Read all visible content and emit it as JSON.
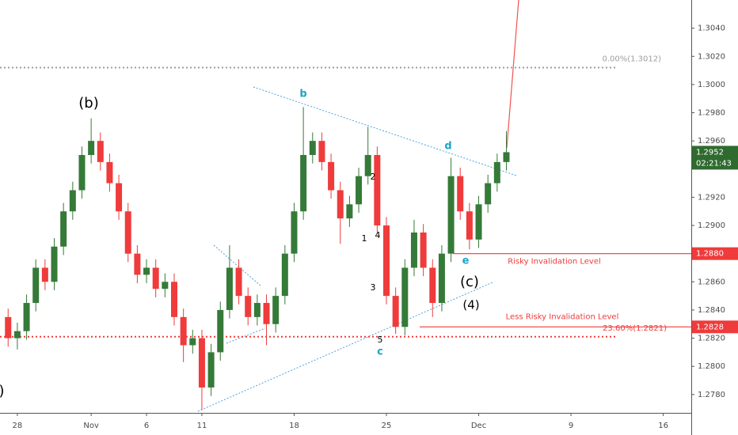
{
  "chart_data": {
    "type": "candlestick",
    "x": [
      -0.5,
      0,
      0.5,
      1,
      1.5,
      2,
      2.5,
      3,
      3.5,
      4,
      4.5,
      5,
      5.5,
      6,
      6.5,
      7,
      7.5,
      8,
      8.5,
      9,
      9.5,
      10,
      10.5,
      11,
      11.5,
      12,
      12.5,
      13,
      13.5,
      14,
      14.5,
      15,
      15.5,
      16,
      16.5,
      17,
      17.5,
      18,
      18.5,
      19,
      19.5,
      20,
      20.5,
      21,
      21.5,
      22,
      22.5,
      23,
      23.5,
      24,
      24.5,
      25,
      25.5,
      26,
      26.5
    ],
    "open": [
      1.2835,
      1.282,
      1.2825,
      1.2845,
      1.287,
      1.286,
      1.2885,
      1.291,
      1.2925,
      1.295,
      1.296,
      1.2945,
      1.293,
      1.291,
      1.288,
      1.2865,
      1.287,
      1.2855,
      1.286,
      1.2835,
      1.2815,
      1.282,
      1.2785,
      1.281,
      1.284,
      1.287,
      1.285,
      1.2835,
      1.2845,
      1.283,
      1.285,
      1.288,
      1.291,
      1.295,
      1.296,
      1.2945,
      1.2925,
      1.2905,
      1.2915,
      1.2935,
      1.295,
      1.29,
      1.285,
      1.2828,
      1.287,
      1.2895,
      1.287,
      1.2845,
      1.288,
      1.2935,
      1.291,
      1.289,
      1.2915,
      1.293,
      1.2945
    ],
    "high": [
      1.2841,
      1.2831,
      1.2851,
      1.2876,
      1.2876,
      1.2891,
      1.2916,
      1.2931,
      1.2956,
      1.2976,
      1.2966,
      1.2951,
      1.2936,
      1.2916,
      1.2886,
      1.2876,
      1.2876,
      1.2866,
      1.2866,
      1.2841,
      1.2826,
      1.2826,
      1.2816,
      1.2846,
      1.2886,
      1.2876,
      1.2856,
      1.2851,
      1.2851,
      1.2856,
      1.2886,
      1.2916,
      1.2984,
      1.2966,
      1.2966,
      1.2951,
      1.2931,
      1.2921,
      1.2941,
      1.297,
      1.2956,
      1.2906,
      1.2856,
      1.2876,
      1.2904,
      1.2901,
      1.2876,
      1.2886,
      1.2948,
      1.2941,
      1.2916,
      1.2921,
      1.2936,
      1.2951,
      1.2967
    ],
    "low": [
      1.2814,
      1.2812,
      1.2819,
      1.2839,
      1.2854,
      1.2854,
      1.2879,
      1.2904,
      1.2919,
      1.2944,
      1.2939,
      1.2924,
      1.2904,
      1.2874,
      1.2859,
      1.2859,
      1.2849,
      1.2849,
      1.2829,
      1.2803,
      1.2809,
      1.2769,
      1.2779,
      1.2804,
      1.2834,
      1.2844,
      1.2829,
      1.2829,
      1.2815,
      1.2824,
      1.2844,
      1.2874,
      1.2904,
      1.2944,
      1.2939,
      1.2919,
      1.2887,
      1.2899,
      1.2909,
      1.2929,
      1.2894,
      1.2844,
      1.2823,
      1.2822,
      1.2864,
      1.2864,
      1.2835,
      1.2839,
      1.2874,
      1.2904,
      1.2883,
      1.2884,
      1.2909,
      1.2924,
      1.2939
    ],
    "close": [
      1.282,
      1.2825,
      1.2845,
      1.287,
      1.286,
      1.2885,
      1.291,
      1.2925,
      1.295,
      1.296,
      1.2945,
      1.293,
      1.291,
      1.288,
      1.2865,
      1.287,
      1.2855,
      1.286,
      1.2835,
      1.2815,
      1.282,
      1.2785,
      1.281,
      1.284,
      1.287,
      1.285,
      1.2835,
      1.2845,
      1.283,
      1.285,
      1.288,
      1.291,
      1.295,
      1.296,
      1.2945,
      1.2925,
      1.2905,
      1.2915,
      1.2935,
      1.295,
      1.29,
      1.285,
      1.2828,
      1.287,
      1.2895,
      1.287,
      1.2845,
      1.288,
      1.2935,
      1.291,
      1.289,
      1.2915,
      1.293,
      1.2945,
      1.2952
    ],
    "up_color": "#357a38",
    "down_color": "#ef3b3b",
    "xlim": [
      -0.94,
      36.52
    ],
    "xticks": [
      {
        "value": 0,
        "label": "28"
      },
      {
        "value": 4,
        "label": "Nov"
      },
      {
        "value": 7,
        "label": "6"
      },
      {
        "value": 10,
        "label": "11"
      },
      {
        "value": 15,
        "label": "18"
      },
      {
        "value": 20,
        "label": "25"
      },
      {
        "value": 25,
        "label": "Dec"
      },
      {
        "value": 30,
        "label": "9"
      },
      {
        "value": 35,
        "label": "16"
      }
    ],
    "ylim": [
      1.2767,
      1.306
    ],
    "yticks": [
      {
        "value": 1.278,
        "label": "1.2780"
      },
      {
        "value": 1.28,
        "label": "1.2800"
      },
      {
        "value": 1.282,
        "label": "1.2820"
      },
      {
        "value": 1.284,
        "label": "1.2840"
      },
      {
        "value": 1.286,
        "label": "1.2860"
      },
      {
        "value": 1.29,
        "label": "1.2900"
      },
      {
        "value": 1.292,
        "label": "1.2920"
      },
      {
        "value": 1.296,
        "label": "1.2960"
      },
      {
        "value": 1.298,
        "label": "1.2980"
      },
      {
        "value": 1.3,
        "label": "1.3000"
      },
      {
        "value": 1.302,
        "label": "1.3020"
      },
      {
        "value": 1.304,
        "label": "1.3040"
      }
    ],
    "fib_levels": [
      {
        "value": 1.3012,
        "label": "0.00%(1.3012)",
        "color": "#9e9e9e"
      },
      {
        "value": 1.2821,
        "label": "23.60%(1.2821)",
        "color": "#ef3b3b"
      }
    ],
    "levels": [
      {
        "value": 1.288,
        "label": "Risky Invalidation Level",
        "tag": "1.2880"
      },
      {
        "value": 1.2828,
        "label": "Less Risky Invalidation Level",
        "tag": "1.2828"
      }
    ],
    "level_color": "#ef3b3b",
    "price_tag": {
      "value": 1.2952,
      "label": "1.2952",
      "countdown": "02:21:43",
      "color": "#2f6b2f"
    },
    "annotations": [
      "(b)",
      "b",
      "d",
      "2",
      "1",
      "4",
      "3",
      "5",
      "c",
      "e",
      "(c)",
      "(4)",
      ")"
    ]
  }
}
